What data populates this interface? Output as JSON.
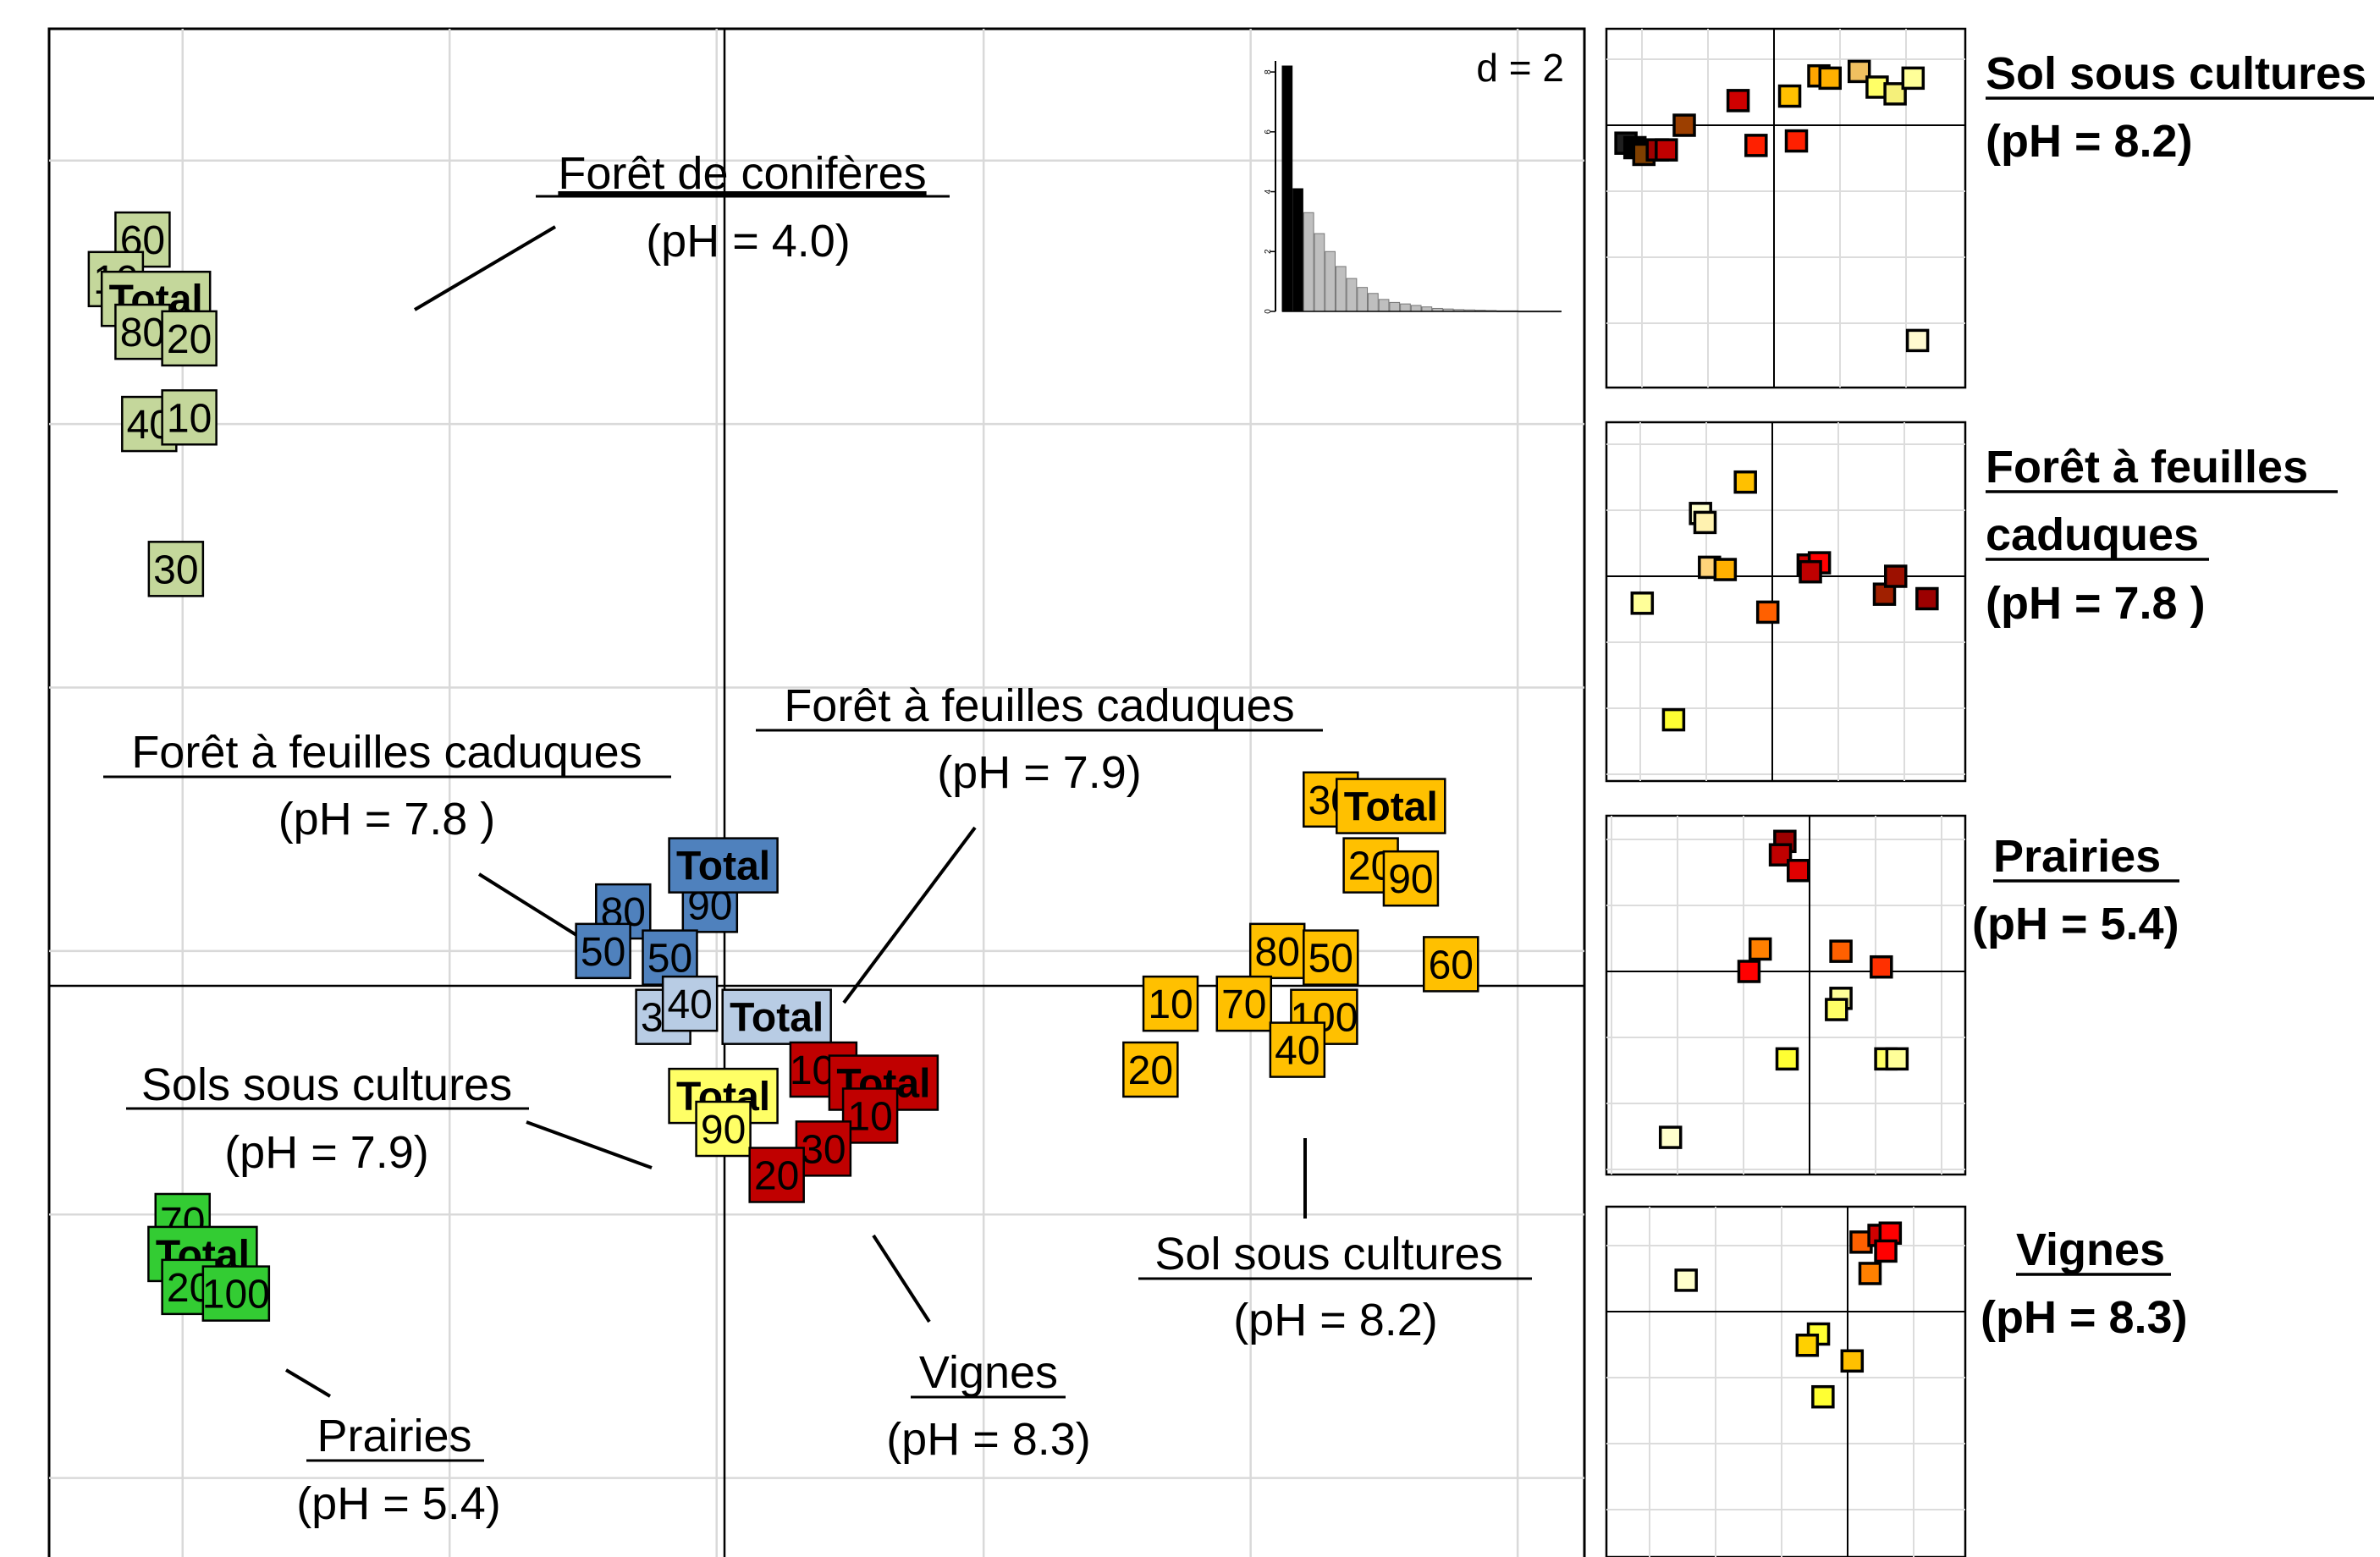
{
  "chart_data": [
    {
      "type": "scatter",
      "role": "main-ordination",
      "d_label": "d = 2",
      "eigenvalues": [
        8.2,
        4.1,
        3.3,
        2.6,
        2.0,
        1.5,
        1.1,
        0.8,
        0.6,
        0.4,
        0.3,
        0.25,
        0.2,
        0.15,
        0.1,
        0.08,
        0.06,
        0.05,
        0.04,
        0.03,
        0.02,
        0.02,
        0.01,
        0.01,
        0.01,
        0.01
      ],
      "eigen_highlight": 2,
      "eigen_ticks": [
        "0",
        "2",
        "4",
        "6",
        "8"
      ],
      "xlim": [
        -5.0,
        6.5
      ],
      "ylim": [
        -4.6,
        7.0
      ],
      "groups": [
        {
          "name": "Forêt de conifères",
          "ph": "(pH = 4.0)",
          "color": "#c4d79b",
          "points": [
            {
              "label": "60",
              "x": -4.3,
              "y": 5.4
            },
            {
              "label": "10",
              "x": -4.5,
              "y": 5.1
            },
            {
              "label": "Total",
              "x": -4.2,
              "y": 4.95,
              "bold": true
            },
            {
              "label": "80",
              "x": -4.3,
              "y": 4.7
            },
            {
              "label": "20",
              "x": -3.95,
              "y": 4.65
            },
            {
              "label": "40",
              "x": -4.25,
              "y": 4.0
            },
            {
              "label": "10",
              "x": -3.95,
              "y": 4.05
            },
            {
              "label": "30",
              "x": -4.05,
              "y": 2.9
            }
          ]
        },
        {
          "name": "Forêt à feuilles caduques",
          "ph": "(pH = 7.8 )",
          "color": "#4f81bd",
          "points": [
            {
              "label": "80",
              "x": -0.7,
              "y": 0.3
            },
            {
              "label": "90",
              "x": -0.05,
              "y": 0.35
            },
            {
              "label": "Total",
              "x": 0.05,
              "y": 0.65,
              "bold": true
            },
            {
              "label": "50",
              "x": -0.85,
              "y": 0.0
            },
            {
              "label": "50",
              "x": -0.35,
              "y": -0.05
            }
          ]
        },
        {
          "name": "Forêt à feuilles caduques",
          "ph": "(pH = 7.9)",
          "color": "#b8cce4",
          "points": [
            {
              "label": "30",
              "x": -0.4,
              "y": -0.5
            },
            {
              "label": "40",
              "x": -0.2,
              "y": -0.4
            },
            {
              "label": "Total",
              "x": 0.45,
              "y": -0.5,
              "bold": true
            }
          ]
        },
        {
          "name": "Sols sous cultures",
          "ph": "(pH = 7.9)",
          "color": "#ffff66",
          "points": [
            {
              "label": "Total",
              "x": 0.05,
              "y": -1.1,
              "bold": true
            },
            {
              "label": "90",
              "x": 0.05,
              "y": -1.35
            }
          ]
        },
        {
          "name": "Vignes",
          "ph": "(pH = 8.3)",
          "color": "#c00000",
          "points": [
            {
              "label": "100",
              "x": 0.8,
              "y": -0.9
            },
            {
              "label": "Total",
              "x": 1.25,
              "y": -1.0,
              "bold": true
            },
            {
              "label": "10",
              "x": 1.15,
              "y": -1.25
            },
            {
              "label": "30",
              "x": 0.8,
              "y": -1.5
            },
            {
              "label": "20",
              "x": 0.45,
              "y": -1.7
            }
          ]
        },
        {
          "name": "Sol sous cultures",
          "ph": "(pH = 8.2)",
          "color": "#ffc000",
          "points": [
            {
              "label": "30",
              "x": 4.6,
              "y": 1.15
            },
            {
              "label": "Total",
              "x": 5.05,
              "y": 1.1,
              "bold": true
            },
            {
              "label": "20",
              "x": 4.9,
              "y": 0.65
            },
            {
              "label": "90",
              "x": 5.2,
              "y": 0.55
            },
            {
              "label": "80",
              "x": 4.2,
              "y": 0.0
            },
            {
              "label": "50",
              "x": 4.6,
              "y": -0.05
            },
            {
              "label": "60",
              "x": 5.5,
              "y": -0.1
            },
            {
              "label": "10",
              "x": 3.4,
              "y": -0.4
            },
            {
              "label": "70",
              "x": 3.95,
              "y": -0.4
            },
            {
              "label": "100",
              "x": 4.55,
              "y": -0.5
            },
            {
              "label": "40",
              "x": 4.35,
              "y": -0.75
            },
            {
              "label": "20",
              "x": 3.25,
              "y": -0.9
            }
          ]
        },
        {
          "name": "Prairies",
          "ph": "(pH = 5.4)",
          "color": "#33cc33",
          "points": [
            {
              "label": "70",
              "x": -4.0,
              "y": -2.05
            },
            {
              "label": "Total",
              "x": -3.85,
              "y": -2.3,
              "bold": true
            },
            {
              "label": "20",
              "x": -3.95,
              "y": -2.55
            },
            {
              "label": "100",
              "x": -3.6,
              "y": -2.6
            }
          ]
        }
      ]
    },
    {
      "type": "scatter",
      "role": "mini-panel",
      "title": "Sol sous cultures",
      "subtitle": "(pH = 8.2)",
      "points": [
        {
          "x": -3.3,
          "y": -0.4,
          "c": "#1f1f1f"
        },
        {
          "x": -3.1,
          "y": -0.5,
          "c": "#000000"
        },
        {
          "x": -2.9,
          "y": -0.65,
          "c": "#7f3f00"
        },
        {
          "x": -2.6,
          "y": -0.55,
          "c": "#a00000"
        },
        {
          "x": -2.4,
          "y": -0.55,
          "c": "#c00000"
        },
        {
          "x": -2.0,
          "y": 0.0,
          "c": "#9c3f00"
        },
        {
          "x": -0.8,
          "y": 0.55,
          "c": "#d00000"
        },
        {
          "x": -0.4,
          "y": -0.45,
          "c": "#ff2000"
        },
        {
          "x": 0.5,
          "y": -0.35,
          "c": "#ff2000"
        },
        {
          "x": 0.35,
          "y": 0.65,
          "c": "#ffc000"
        },
        {
          "x": 1.0,
          "y": 1.1,
          "c": "#ffa500"
        },
        {
          "x": 1.25,
          "y": 1.05,
          "c": "#ffb000"
        },
        {
          "x": 1.9,
          "y": 1.2,
          "c": "#f0c060"
        },
        {
          "x": 2.3,
          "y": 0.85,
          "c": "#ffff66"
        },
        {
          "x": 2.7,
          "y": 0.7,
          "c": "#f5f07a"
        },
        {
          "x": 3.1,
          "y": 1.05,
          "c": "#ffff99"
        },
        {
          "x": 3.2,
          "y": -4.8,
          "c": "#fffad0"
        }
      ]
    },
    {
      "type": "scatter",
      "role": "mini-panel",
      "title": "Forêt à feuilles",
      "title2": "caduques",
      "subtitle": "(pH = 7.8 )",
      "points": [
        {
          "x": -0.6,
          "y": 2.1,
          "c": "#ffc000"
        },
        {
          "x": -1.6,
          "y": 1.4,
          "c": "#ffffcc"
        },
        {
          "x": -1.5,
          "y": 1.2,
          "c": "#fff2b0"
        },
        {
          "x": -1.4,
          "y": 0.2,
          "c": "#ffd37a"
        },
        {
          "x": -1.05,
          "y": 0.15,
          "c": "#ffb000"
        },
        {
          "x": -0.1,
          "y": -0.8,
          "c": "#ff6000"
        },
        {
          "x": 0.8,
          "y": 0.25,
          "c": "#d00000"
        },
        {
          "x": 1.05,
          "y": 0.3,
          "c": "#ff0000"
        },
        {
          "x": 0.85,
          "y": 0.1,
          "c": "#c00000"
        },
        {
          "x": 2.5,
          "y": -0.4,
          "c": "#a02000"
        },
        {
          "x": 2.75,
          "y": 0.0,
          "c": "#9c1000"
        },
        {
          "x": 3.45,
          "y": -0.5,
          "c": "#9c0000"
        },
        {
          "x": -2.9,
          "y": -0.6,
          "c": "#ffff99"
        },
        {
          "x": -2.2,
          "y": -3.2,
          "c": "#ffff33"
        }
      ]
    },
    {
      "type": "scatter",
      "role": "mini-panel",
      "title": "Prairies",
      "subtitle": "(pH = 5.4)",
      "points": [
        {
          "x": -0.55,
          "y": 2.9,
          "c": "#9c0000"
        },
        {
          "x": -0.65,
          "y": 2.6,
          "c": "#c00000"
        },
        {
          "x": -0.25,
          "y": 2.25,
          "c": "#e00000"
        },
        {
          "x": -1.1,
          "y": 0.5,
          "c": "#ff8000"
        },
        {
          "x": -1.35,
          "y": 0.0,
          "c": "#ff0000"
        },
        {
          "x": 0.7,
          "y": 0.45,
          "c": "#ff6000"
        },
        {
          "x": 1.6,
          "y": 0.1,
          "c": "#ff3000"
        },
        {
          "x": 0.7,
          "y": -0.6,
          "c": "#ffff99"
        },
        {
          "x": 0.6,
          "y": -0.85,
          "c": "#ffff66"
        },
        {
          "x": -0.5,
          "y": -1.95,
          "c": "#ffff33"
        },
        {
          "x": 1.7,
          "y": -1.95,
          "c": "#ffff66"
        },
        {
          "x": 1.95,
          "y": -1.95,
          "c": "#ffff99"
        },
        {
          "x": -3.1,
          "y": -3.7,
          "c": "#ffffcc"
        }
      ]
    },
    {
      "type": "scatter",
      "role": "mini-panel",
      "title": "Vignes",
      "subtitle": "(pH = 8.3)",
      "points": [
        {
          "x": -3.6,
          "y": 0.7,
          "c": "#ffffcc"
        },
        {
          "x": 0.3,
          "y": 1.55,
          "c": "#ff6000"
        },
        {
          "x": 0.7,
          "y": 1.7,
          "c": "#d00000"
        },
        {
          "x": 0.95,
          "y": 1.75,
          "c": "#ff0000"
        },
        {
          "x": 0.85,
          "y": 1.35,
          "c": "#ff0000"
        },
        {
          "x": 0.5,
          "y": 0.85,
          "c": "#ff8000"
        },
        {
          "x": -0.65,
          "y": -0.5,
          "c": "#ffff33"
        },
        {
          "x": -0.9,
          "y": -0.75,
          "c": "#ffd000"
        },
        {
          "x": 0.1,
          "y": -1.1,
          "c": "#ffc000"
        },
        {
          "x": -0.55,
          "y": -1.9,
          "c": "#ffff33"
        },
        {
          "x": 0.7,
          "y": -5.9,
          "c": "#fffad0"
        }
      ]
    }
  ]
}
